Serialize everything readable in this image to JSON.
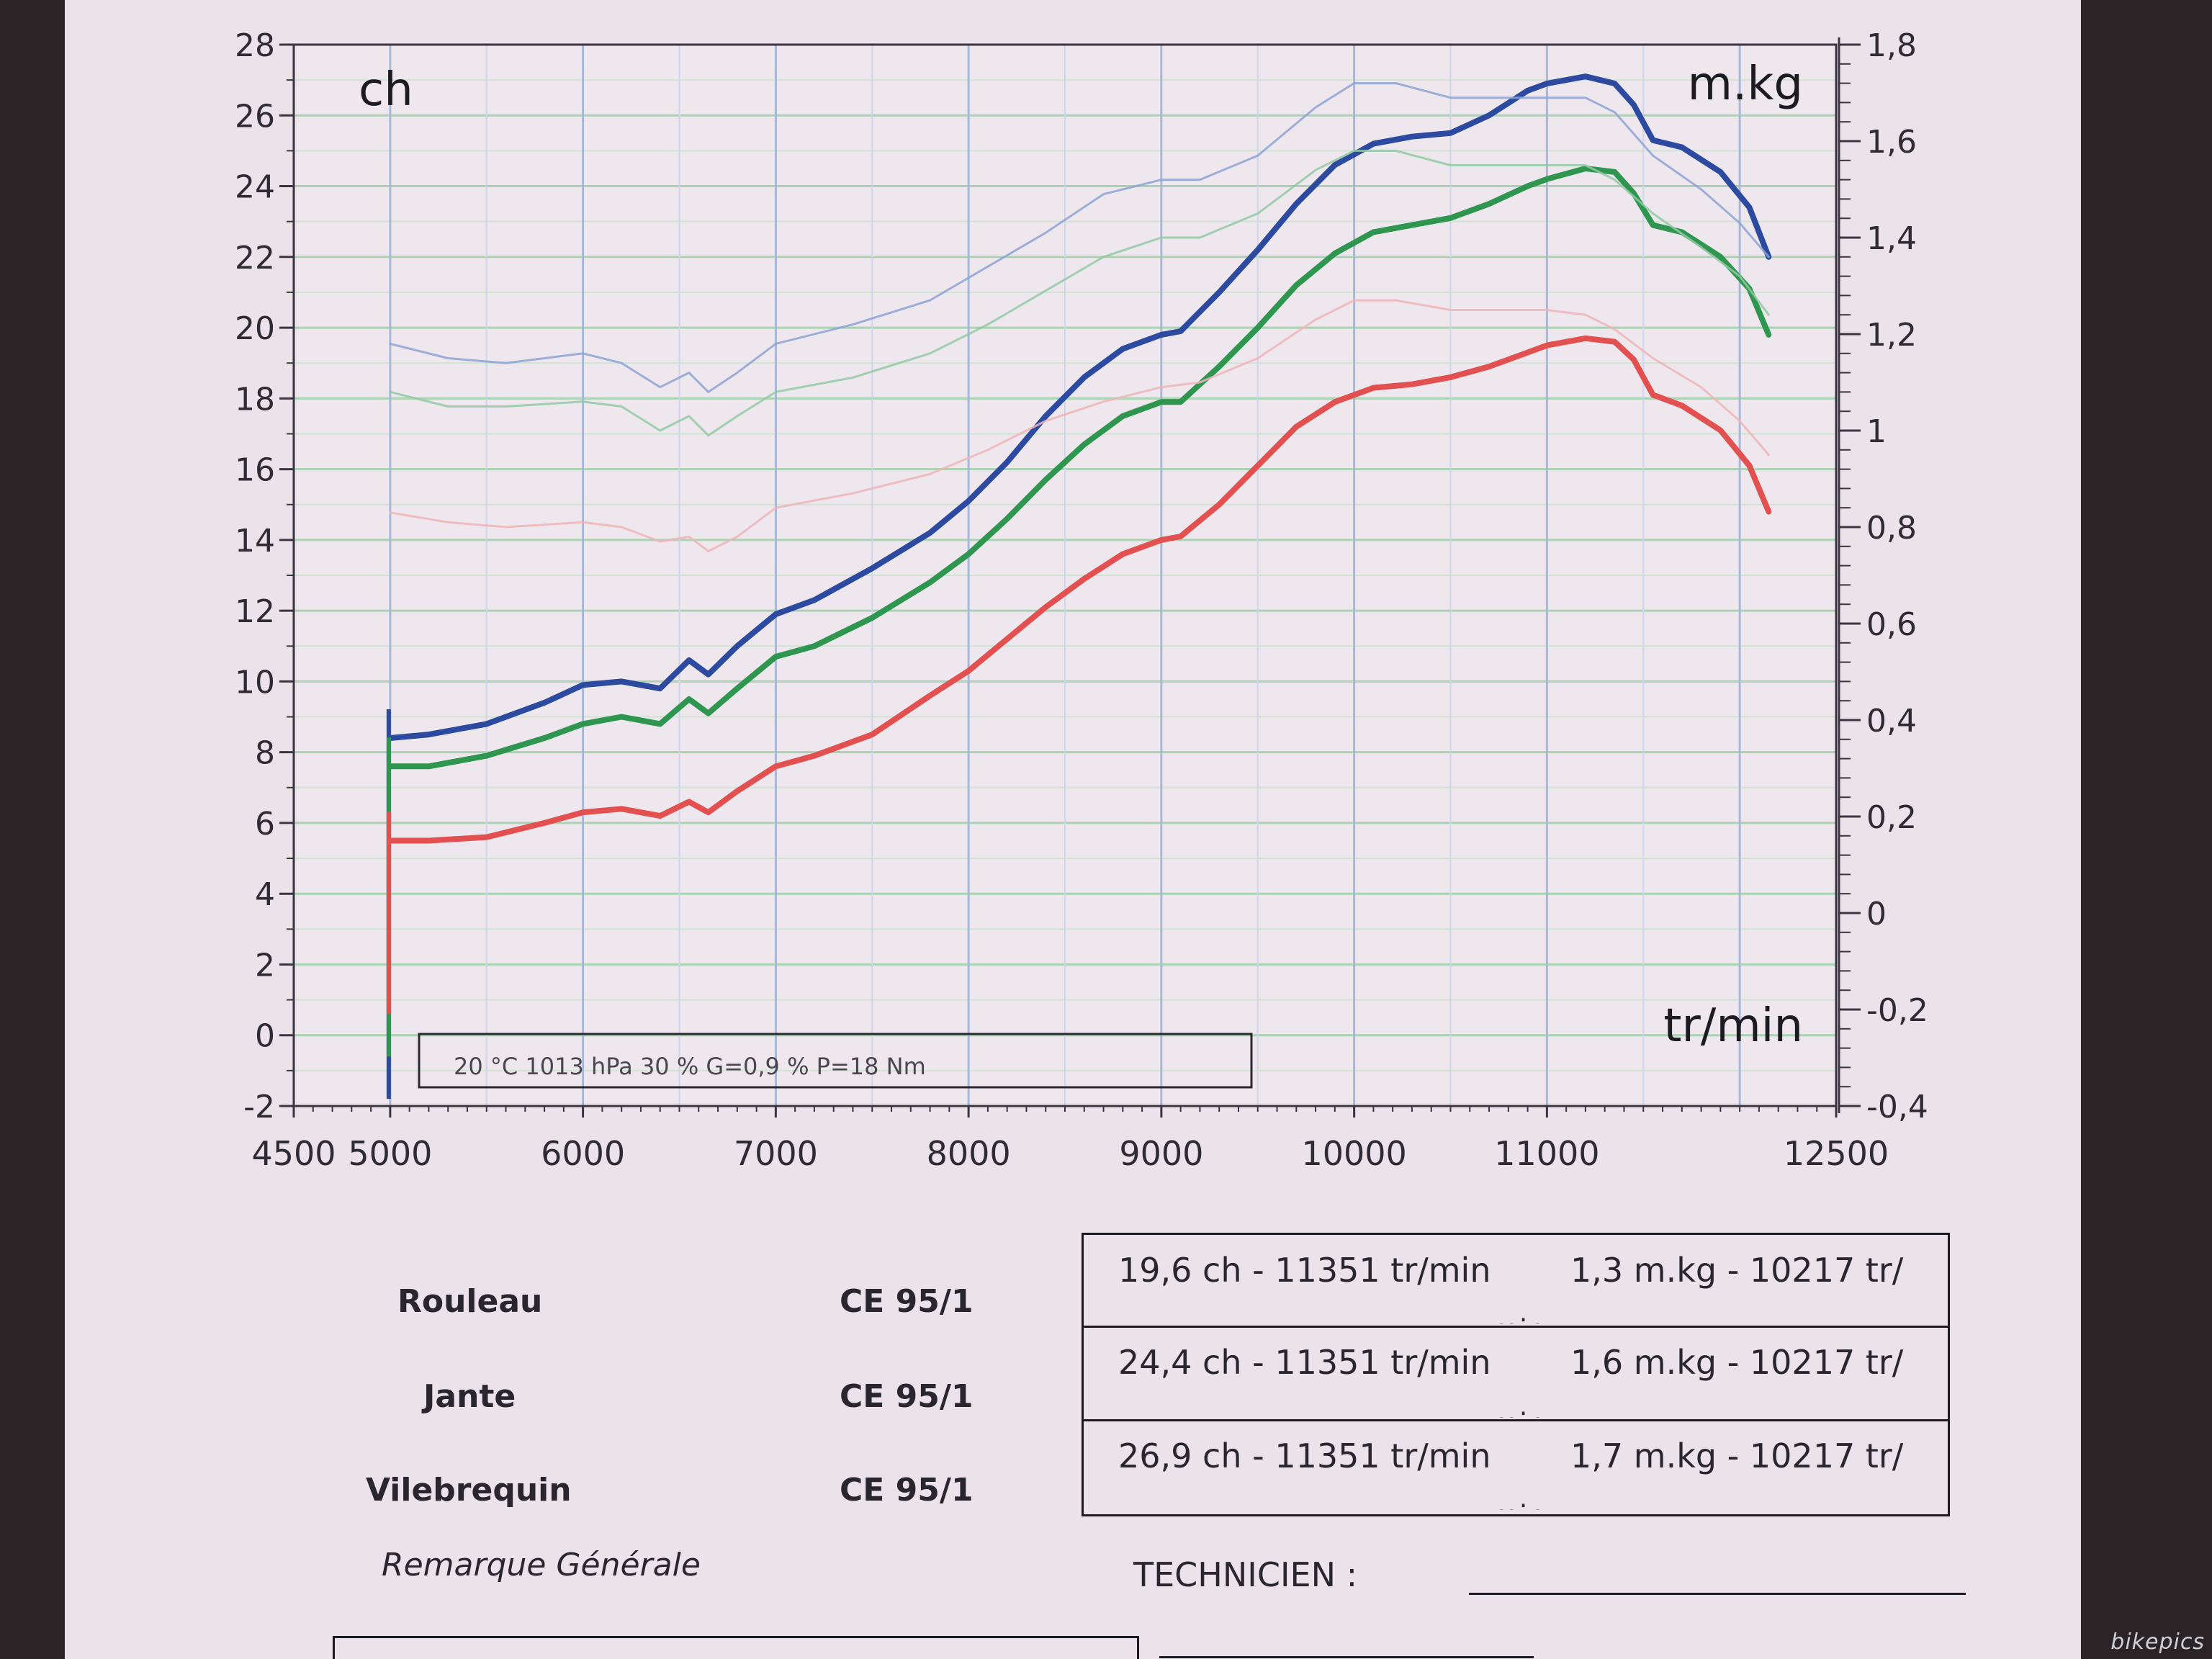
{
  "chart_data": {
    "type": "line",
    "x_ticks": [
      4500,
      5000,
      6000,
      7000,
      8000,
      9000,
      10000,
      11000,
      12500
    ],
    "xlim": [
      4500,
      12500
    ],
    "ylim_left": [
      -2,
      28
    ],
    "ylim_right": [
      -0.4,
      1.8
    ],
    "left_ticks": [
      "28",
      "26",
      "24",
      "22",
      "20",
      "18",
      "16",
      "14",
      "12",
      "10",
      "8",
      "6",
      "4",
      "2",
      "0",
      "-2"
    ],
    "right_ticks": [
      "1,8",
      "1,6",
      "1,4",
      "1,2",
      "1",
      "0,8",
      "0,6",
      "0,4",
      "0,2",
      "0",
      "-0,2",
      "-0,4"
    ],
    "left_unit": "ch",
    "right_unit": "m.kg",
    "x_unit": "tr/min",
    "conditions": "20 °C   1013 hPa   30 %   G=0,9 %   P=18 Nm",
    "series": [
      {
        "kind": "power",
        "color": "#2b4aa0",
        "points": [
          [
            5000,
            8.4
          ],
          [
            5200,
            8.5
          ],
          [
            5500,
            8.8
          ],
          [
            5800,
            9.4
          ],
          [
            6000,
            9.9
          ],
          [
            6200,
            10.0
          ],
          [
            6400,
            9.8
          ],
          [
            6550,
            10.6
          ],
          [
            6650,
            10.2
          ],
          [
            6800,
            11.0
          ],
          [
            7000,
            11.9
          ],
          [
            7200,
            12.3
          ],
          [
            7500,
            13.2
          ],
          [
            7800,
            14.2
          ],
          [
            8000,
            15.1
          ],
          [
            8200,
            16.2
          ],
          [
            8400,
            17.5
          ],
          [
            8600,
            18.6
          ],
          [
            8800,
            19.4
          ],
          [
            9000,
            19.8
          ],
          [
            9100,
            19.9
          ],
          [
            9300,
            21.0
          ],
          [
            9500,
            22.2
          ],
          [
            9700,
            23.5
          ],
          [
            9900,
            24.6
          ],
          [
            10100,
            25.2
          ],
          [
            10300,
            25.4
          ],
          [
            10500,
            25.5
          ],
          [
            10700,
            26.0
          ],
          [
            10900,
            26.7
          ],
          [
            11000,
            26.9
          ],
          [
            11200,
            27.1
          ],
          [
            11351,
            26.9
          ],
          [
            11450,
            26.3
          ],
          [
            11550,
            25.3
          ],
          [
            11700,
            25.1
          ],
          [
            11900,
            24.4
          ],
          [
            12050,
            23.4
          ],
          [
            12150,
            22.0
          ]
        ]
      },
      {
        "kind": "power",
        "color": "#2f9650",
        "points": [
          [
            5000,
            7.6
          ],
          [
            5200,
            7.6
          ],
          [
            5500,
            7.9
          ],
          [
            5800,
            8.4
          ],
          [
            6000,
            8.8
          ],
          [
            6200,
            9.0
          ],
          [
            6400,
            8.8
          ],
          [
            6550,
            9.5
          ],
          [
            6650,
            9.1
          ],
          [
            6800,
            9.8
          ],
          [
            7000,
            10.7
          ],
          [
            7200,
            11.0
          ],
          [
            7500,
            11.8
          ],
          [
            7800,
            12.8
          ],
          [
            8000,
            13.6
          ],
          [
            8200,
            14.6
          ],
          [
            8400,
            15.7
          ],
          [
            8600,
            16.7
          ],
          [
            8800,
            17.5
          ],
          [
            9000,
            17.9
          ],
          [
            9100,
            17.9
          ],
          [
            9300,
            18.9
          ],
          [
            9500,
            20.0
          ],
          [
            9700,
            21.2
          ],
          [
            9900,
            22.1
          ],
          [
            10100,
            22.7
          ],
          [
            10300,
            22.9
          ],
          [
            10500,
            23.1
          ],
          [
            10700,
            23.5
          ],
          [
            10900,
            24.0
          ],
          [
            11000,
            24.2
          ],
          [
            11200,
            24.5
          ],
          [
            11351,
            24.4
          ],
          [
            11450,
            23.8
          ],
          [
            11550,
            22.9
          ],
          [
            11700,
            22.7
          ],
          [
            11900,
            22.0
          ],
          [
            12050,
            21.1
          ],
          [
            12150,
            19.8
          ]
        ]
      },
      {
        "kind": "power",
        "color": "#e25050",
        "points": [
          [
            5000,
            5.5
          ],
          [
            5200,
            5.5
          ],
          [
            5500,
            5.6
          ],
          [
            5800,
            6.0
          ],
          [
            6000,
            6.3
          ],
          [
            6200,
            6.4
          ],
          [
            6400,
            6.2
          ],
          [
            6550,
            6.6
          ],
          [
            6650,
            6.3
          ],
          [
            6800,
            6.9
          ],
          [
            7000,
            7.6
          ],
          [
            7200,
            7.9
          ],
          [
            7500,
            8.5
          ],
          [
            7800,
            9.6
          ],
          [
            8000,
            10.3
          ],
          [
            8200,
            11.2
          ],
          [
            8400,
            12.1
          ],
          [
            8600,
            12.9
          ],
          [
            8800,
            13.6
          ],
          [
            9000,
            14.0
          ],
          [
            9100,
            14.1
          ],
          [
            9300,
            15.0
          ],
          [
            9500,
            16.1
          ],
          [
            9700,
            17.2
          ],
          [
            9900,
            17.9
          ],
          [
            10100,
            18.3
          ],
          [
            10300,
            18.4
          ],
          [
            10500,
            18.6
          ],
          [
            10700,
            18.9
          ],
          [
            10900,
            19.3
          ],
          [
            11000,
            19.5
          ],
          [
            11200,
            19.7
          ],
          [
            11351,
            19.6
          ],
          [
            11450,
            19.1
          ],
          [
            11550,
            18.1
          ],
          [
            11700,
            17.8
          ],
          [
            11900,
            17.1
          ],
          [
            12050,
            16.1
          ],
          [
            12150,
            14.8
          ]
        ]
      },
      {
        "kind": "torque",
        "color": "#8da3d4",
        "points": [
          [
            5000,
            1.18
          ],
          [
            5300,
            1.15
          ],
          [
            5600,
            1.14
          ],
          [
            6000,
            1.16
          ],
          [
            6200,
            1.14
          ],
          [
            6400,
            1.09
          ],
          [
            6550,
            1.12
          ],
          [
            6650,
            1.08
          ],
          [
            6800,
            1.12
          ],
          [
            7000,
            1.18
          ],
          [
            7400,
            1.22
          ],
          [
            7800,
            1.27
          ],
          [
            8100,
            1.34
          ],
          [
            8400,
            1.41
          ],
          [
            8700,
            1.49
          ],
          [
            9000,
            1.52
          ],
          [
            9200,
            1.52
          ],
          [
            9500,
            1.57
          ],
          [
            9800,
            1.67
          ],
          [
            10000,
            1.72
          ],
          [
            10217,
            1.72
          ],
          [
            10500,
            1.69
          ],
          [
            10800,
            1.69
          ],
          [
            11000,
            1.69
          ],
          [
            11200,
            1.69
          ],
          [
            11351,
            1.66
          ],
          [
            11550,
            1.57
          ],
          [
            11800,
            1.5
          ],
          [
            12000,
            1.43
          ],
          [
            12150,
            1.36
          ]
        ]
      },
      {
        "kind": "torque",
        "color": "#93c9a5",
        "points": [
          [
            5000,
            1.08
          ],
          [
            5300,
            1.05
          ],
          [
            5600,
            1.05
          ],
          [
            6000,
            1.06
          ],
          [
            6200,
            1.05
          ],
          [
            6400,
            1.0
          ],
          [
            6550,
            1.03
          ],
          [
            6650,
            0.99
          ],
          [
            6800,
            1.03
          ],
          [
            7000,
            1.08
          ],
          [
            7400,
            1.11
          ],
          [
            7800,
            1.16
          ],
          [
            8100,
            1.22
          ],
          [
            8400,
            1.29
          ],
          [
            8700,
            1.36
          ],
          [
            9000,
            1.4
          ],
          [
            9200,
            1.4
          ],
          [
            9500,
            1.45
          ],
          [
            9800,
            1.54
          ],
          [
            10000,
            1.58
          ],
          [
            10217,
            1.58
          ],
          [
            10500,
            1.55
          ],
          [
            10800,
            1.55
          ],
          [
            11000,
            1.55
          ],
          [
            11200,
            1.55
          ],
          [
            11351,
            1.52
          ],
          [
            11550,
            1.45
          ],
          [
            11800,
            1.38
          ],
          [
            12000,
            1.32
          ],
          [
            12150,
            1.24
          ]
        ]
      },
      {
        "kind": "torque",
        "color": "#eeb5b9",
        "points": [
          [
            5000,
            0.83
          ],
          [
            5300,
            0.81
          ],
          [
            5600,
            0.8
          ],
          [
            6000,
            0.81
          ],
          [
            6200,
            0.8
          ],
          [
            6400,
            0.77
          ],
          [
            6550,
            0.78
          ],
          [
            6650,
            0.75
          ],
          [
            6800,
            0.78
          ],
          [
            7000,
            0.84
          ],
          [
            7400,
            0.87
          ],
          [
            7800,
            0.91
          ],
          [
            8100,
            0.96
          ],
          [
            8400,
            1.02
          ],
          [
            8700,
            1.06
          ],
          [
            9000,
            1.09
          ],
          [
            9200,
            1.1
          ],
          [
            9500,
            1.15
          ],
          [
            9800,
            1.23
          ],
          [
            10000,
            1.27
          ],
          [
            10217,
            1.27
          ],
          [
            10500,
            1.25
          ],
          [
            10800,
            1.25
          ],
          [
            11000,
            1.25
          ],
          [
            11200,
            1.24
          ],
          [
            11351,
            1.21
          ],
          [
            11550,
            1.15
          ],
          [
            11800,
            1.09
          ],
          [
            12000,
            1.02
          ],
          [
            12150,
            0.95
          ]
        ]
      }
    ]
  },
  "results": {
    "rows": [
      {
        "label": "Rouleau",
        "norm": "CE 95/1",
        "power": "19,6 ch - 11351 tr/min",
        "torque": "1,3 m.kg - 10217 tr/",
        "wrap": "min"
      },
      {
        "label": "Jante",
        "norm": "CE 95/1",
        "power": "24,4 ch - 11351 tr/min",
        "torque": "1,6 m.kg - 10217 tr/",
        "wrap": "min"
      },
      {
        "label": "Vilebrequin",
        "norm": "CE 95/1",
        "power": "26,9 ch - 11351 tr/min",
        "torque": "1,7 m.kg - 10217 tr/",
        "wrap": "min"
      }
    ]
  },
  "remarks_label": "Remarque Générale",
  "technician_label": "TECHNICIEN :",
  "watermark": "bikepics"
}
